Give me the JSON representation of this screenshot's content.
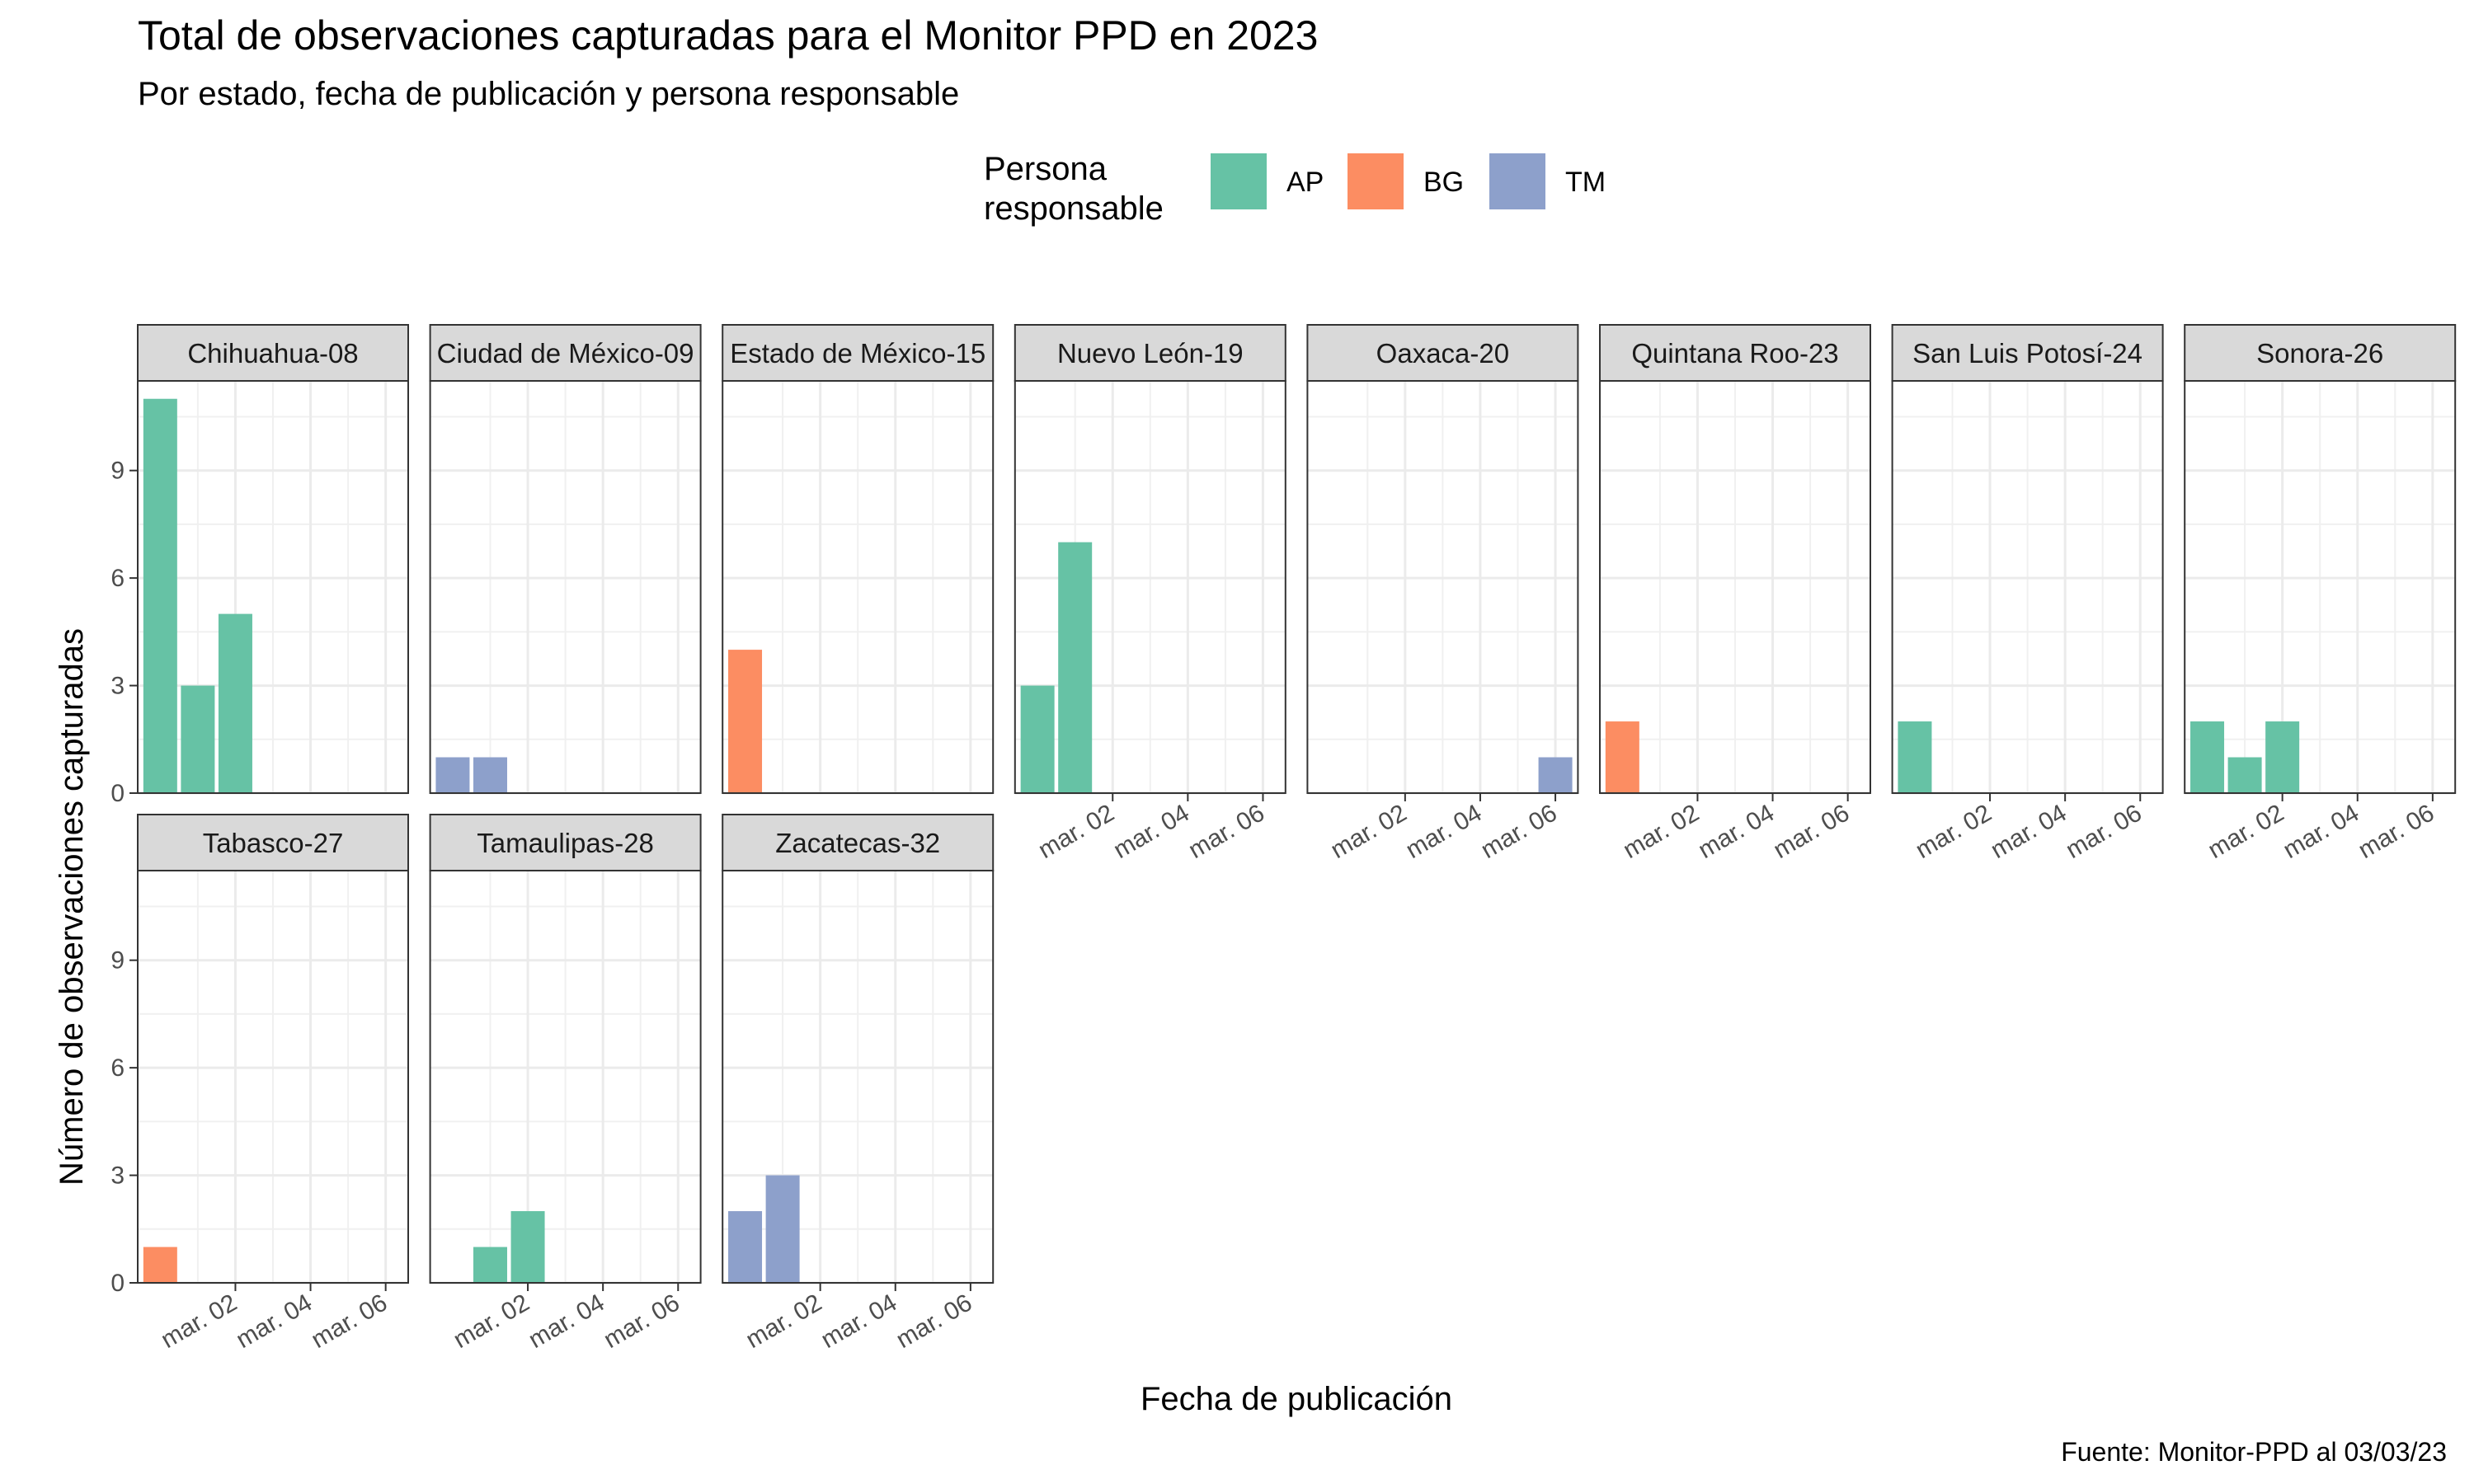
{
  "chart_data": {
    "type": "bar",
    "title": "Total de observaciones capturadas para el Monitor PPD en 2023",
    "subtitle": "Por estado, fecha de publicación y persona responsable",
    "xlabel": "Fecha de publicación",
    "ylabel": "Número de observaciones capturadas",
    "caption": "Fuente: Monitor-PPD al 03/03/23",
    "legend": {
      "title_lines": [
        "Persona",
        "responsable"
      ],
      "placement": "top",
      "entries": [
        {
          "key": "AP",
          "label": "AP",
          "color": "#66C2A5"
        },
        {
          "key": "BG",
          "label": "BG",
          "color": "#FC8D62"
        },
        {
          "key": "TM",
          "label": "TM",
          "color": "#8DA0CB"
        }
      ]
    },
    "x_domain": [
      "2023-02-28",
      "2023-03-06"
    ],
    "x_ticks": [
      {
        "date": "2023-03-02",
        "label": "mar. 02"
      },
      {
        "date": "2023-03-04",
        "label": "mar. 04"
      },
      {
        "date": "2023-03-06",
        "label": "mar. 06"
      }
    ],
    "ylim": [
      0,
      11.5
    ],
    "y_ticks": [
      0,
      3,
      6,
      9
    ],
    "grid": true,
    "panel_columns": 8,
    "panels": [
      {
        "name": "Chihuahua-08",
        "bars": [
          {
            "date": "2023-02-28",
            "value": 11,
            "persona": "AP"
          },
          {
            "date": "2023-03-01",
            "value": 3,
            "persona": "AP"
          },
          {
            "date": "2023-03-02",
            "value": 5,
            "persona": "AP"
          }
        ]
      },
      {
        "name": "Ciudad de México-09",
        "bars": [
          {
            "date": "2023-02-28",
            "value": 1,
            "persona": "TM"
          },
          {
            "date": "2023-03-01",
            "value": 1,
            "persona": "TM"
          }
        ]
      },
      {
        "name": "Estado de México-15",
        "bars": [
          {
            "date": "2023-02-28",
            "value": 4,
            "persona": "BG"
          }
        ]
      },
      {
        "name": "Nuevo León-19",
        "bars": [
          {
            "date": "2023-02-28",
            "value": 3,
            "persona": "AP"
          },
          {
            "date": "2023-03-01",
            "value": 7,
            "persona": "AP"
          }
        ]
      },
      {
        "name": "Oaxaca-20",
        "bars": [
          {
            "date": "2023-03-06",
            "value": 1,
            "persona": "TM"
          }
        ]
      },
      {
        "name": "Quintana Roo-23",
        "bars": [
          {
            "date": "2023-02-28",
            "value": 2,
            "persona": "BG"
          }
        ]
      },
      {
        "name": "San Luis Potosí-24",
        "bars": [
          {
            "date": "2023-02-28",
            "value": 2,
            "persona": "AP"
          }
        ]
      },
      {
        "name": "Sonora-26",
        "bars": [
          {
            "date": "2023-02-28",
            "value": 2,
            "persona": "AP"
          },
          {
            "date": "2023-03-01",
            "value": 1,
            "persona": "AP"
          },
          {
            "date": "2023-03-02",
            "value": 2,
            "persona": "AP"
          }
        ]
      },
      {
        "name": "Tabasco-27",
        "bars": [
          {
            "date": "2023-02-28",
            "value": 1,
            "persona": "BG"
          }
        ]
      },
      {
        "name": "Tamaulipas-28",
        "bars": [
          {
            "date": "2023-03-01",
            "value": 1,
            "persona": "AP"
          },
          {
            "date": "2023-03-02",
            "value": 2,
            "persona": "AP"
          }
        ]
      },
      {
        "name": "Zacatecas-32",
        "bars": [
          {
            "date": "2023-02-28",
            "value": 2,
            "persona": "TM"
          },
          {
            "date": "2023-03-01",
            "value": 3,
            "persona": "TM"
          }
        ]
      }
    ]
  }
}
